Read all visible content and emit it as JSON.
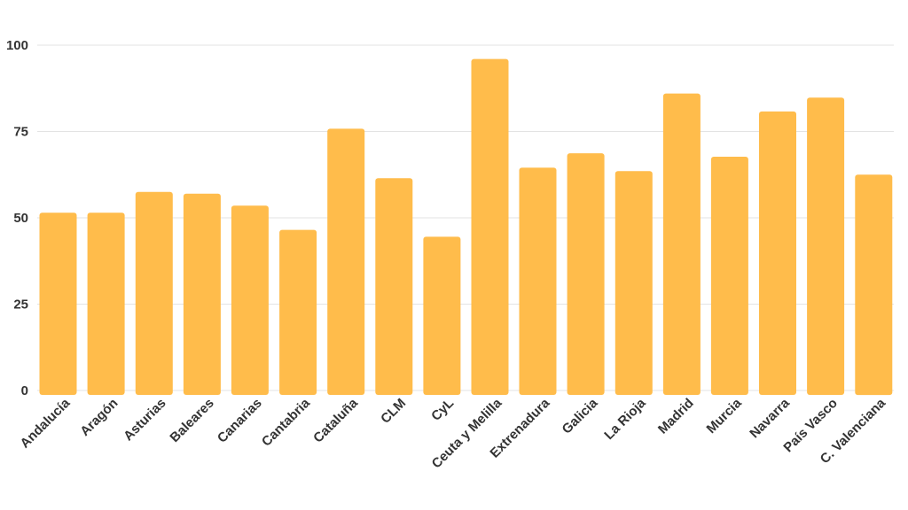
{
  "chart_data": {
    "type": "bar",
    "title": "",
    "xlabel": "",
    "ylabel": "",
    "ylim": [
      0,
      100
    ],
    "yticks": [
      0,
      25,
      50,
      75,
      100
    ],
    "grid": true,
    "legend": "none",
    "bar_color": "#FFBC4B",
    "categories": [
      "Andalucía",
      "Aragón",
      "Asturias",
      "Baleares",
      "Canarias",
      "Cantabria",
      "Cataluña",
      "CLM",
      "CyL",
      "Ceuta y Melilla",
      "Extrenadura",
      "Galicia",
      "La Rioja",
      "Madrid",
      "Murcia",
      "Navarra",
      "País Vasco",
      "C. Valenciana"
    ],
    "values": [
      51.5,
      51.5,
      57.5,
      57,
      53.5,
      46.5,
      75.8,
      61.5,
      44.5,
      96,
      64.5,
      68.7,
      63.5,
      86,
      67.7,
      80.8,
      84.8,
      62.5
    ]
  }
}
